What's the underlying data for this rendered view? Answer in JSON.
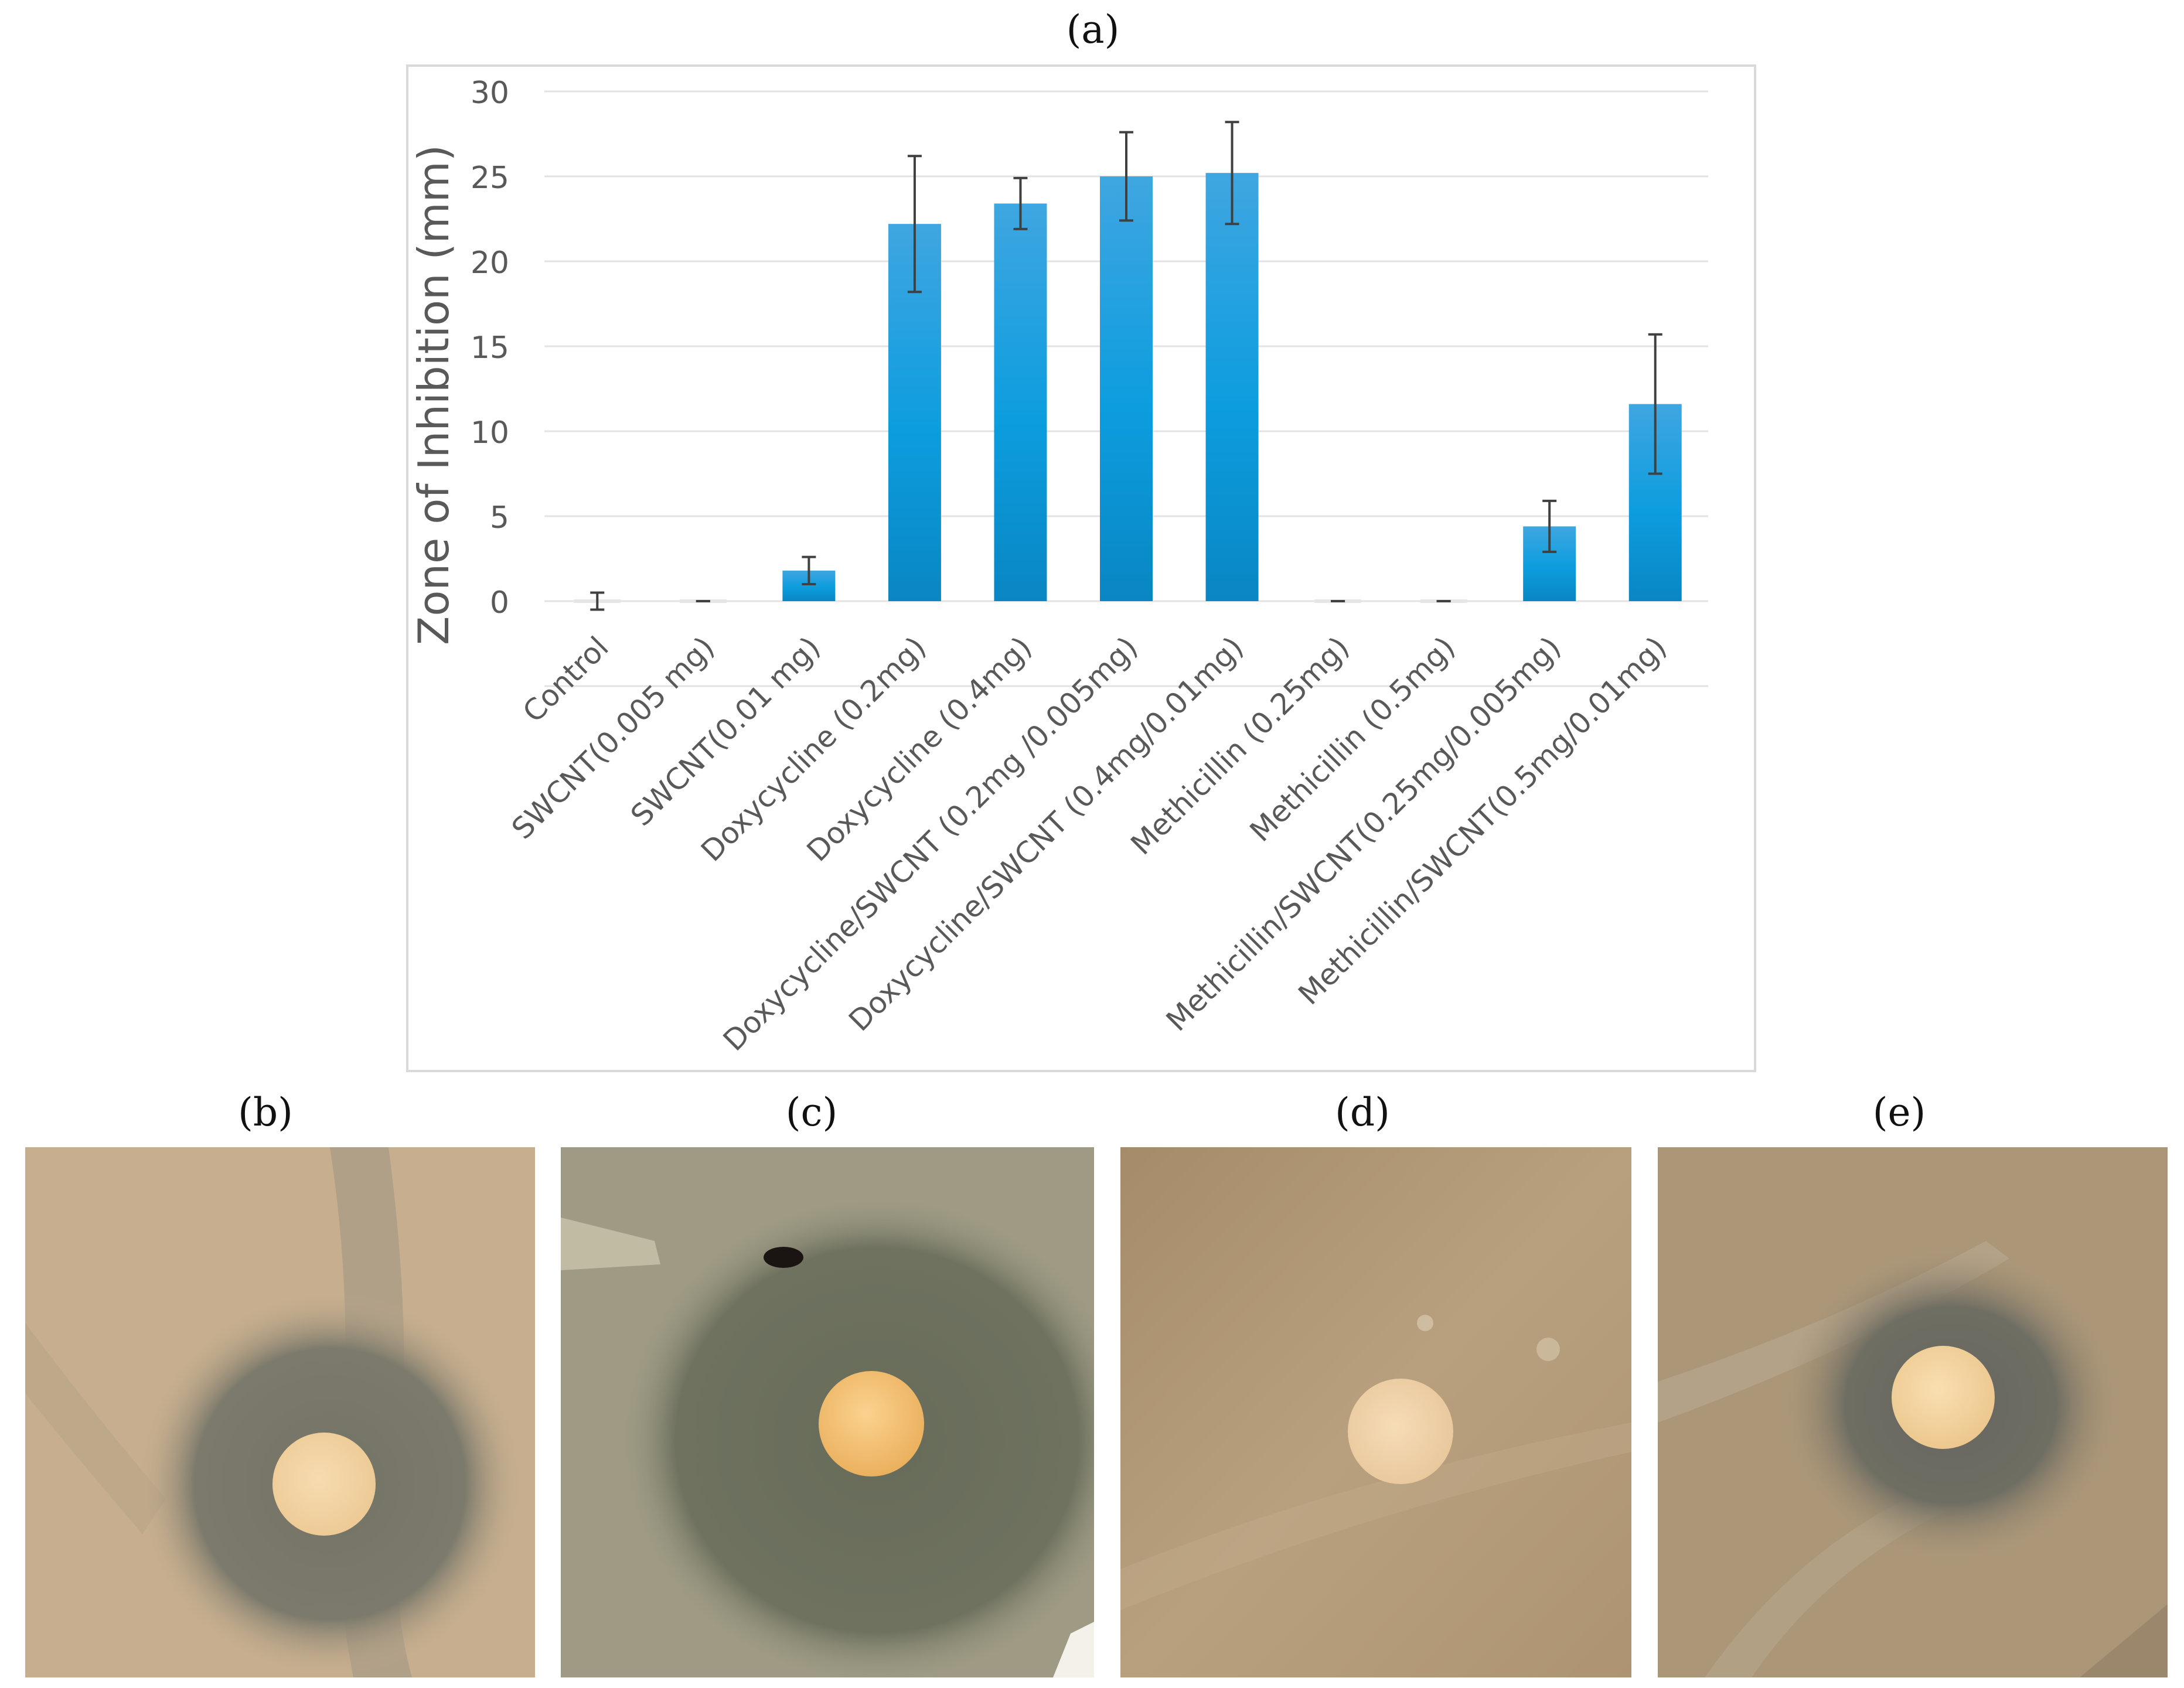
{
  "figure": {
    "panel_labels": [
      "(a)",
      "(b)",
      "(c)",
      "(d)",
      "(e)"
    ]
  },
  "chart_data": {
    "type": "bar",
    "title": "",
    "xlabel": "",
    "ylabel": "Zone of Inhibition (mm)",
    "ylim": [
      -5,
      30
    ],
    "yticks": [
      0,
      5,
      10,
      15,
      20,
      25,
      30
    ],
    "grid": true,
    "legend": "none",
    "bar_color": "#0c9ddf",
    "categories": [
      "Control",
      "SWCNT(0.005 mg)",
      "SWCNT(0.01 mg)",
      "Doxycycline (0.2mg)",
      "Doxycycline (0.4mg)",
      "Doxycycline/SWCNT (0.2mg /0.005mg)",
      "Doxycycline/SWCNT (0.4mg/0.01mg)",
      "Methicillin (0.25mg)",
      "Methicillin (0.5mg)",
      "Methicillin/SWCNT(0.25mg/0.005mg)",
      "Methicillin/SWCNT(0.5mg/0.01mg)"
    ],
    "values": [
      0,
      0,
      1.8,
      22.2,
      23.4,
      25.0,
      25.2,
      0,
      0,
      4.4,
      11.6
    ],
    "errors": [
      0.5,
      0,
      0.8,
      4.0,
      1.5,
      2.6,
      3.0,
      0,
      0,
      1.5,
      4.1
    ]
  },
  "photos": {
    "b": {
      "background": "#c6ae8e",
      "zone": "#7c7a6c",
      "disc": "#f2d5a6"
    },
    "c": {
      "background": "#9e9a84",
      "zone": "#6e725f",
      "disc": "#f6c77e"
    },
    "d": {
      "background": "#b59b7a",
      "zone": "#b59b7a",
      "disc": "#f0d3ac"
    },
    "e": {
      "background": "#ab9678",
      "zone": "#6f6e63",
      "disc": "#f4d8a4"
    }
  }
}
